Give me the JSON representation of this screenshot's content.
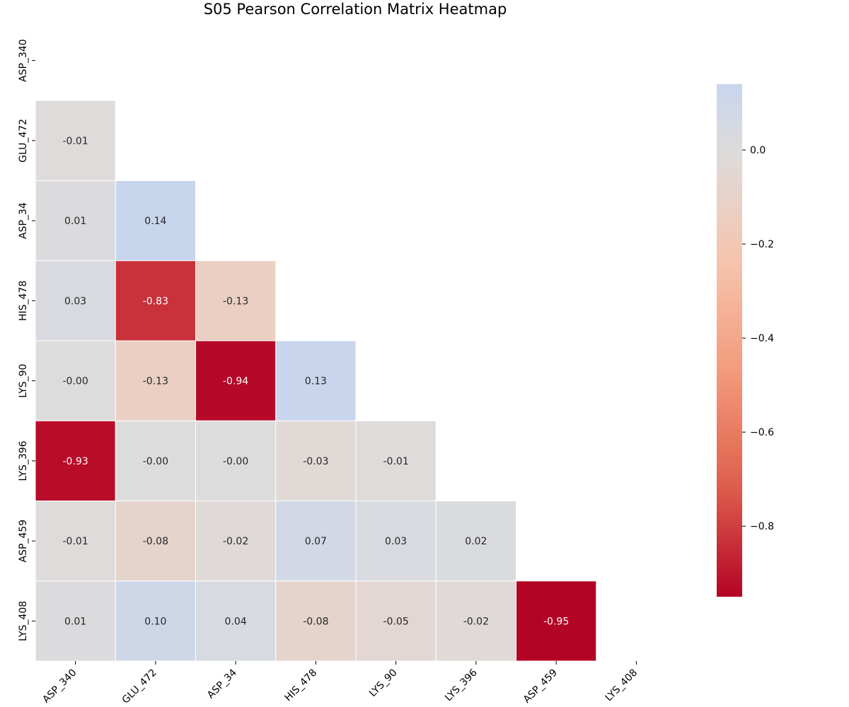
{
  "chart_data": {
    "type": "heatmap",
    "title": "S05 Pearson Correlation Matrix Heatmap",
    "variables": [
      "ASP_340",
      "GLU_472",
      "ASP_34",
      "HIS_478",
      "LYS_90",
      "LYS_396",
      "ASP_459",
      "LYS_408"
    ],
    "mask": "upper-triangle-including-diagonal",
    "lower_triangle": [
      {
        "row": "GLU_472",
        "values": [
          -0.01
        ]
      },
      {
        "row": "ASP_34",
        "values": [
          0.01,
          0.14
        ]
      },
      {
        "row": "HIS_478",
        "values": [
          0.03,
          -0.83,
          -0.13
        ]
      },
      {
        "row": "LYS_90",
        "values": [
          -0.0,
          -0.13,
          -0.94,
          0.13
        ]
      },
      {
        "row": "LYS_396",
        "values": [
          -0.93,
          -0.0,
          -0.0,
          -0.03,
          -0.01
        ]
      },
      {
        "row": "ASP_459",
        "values": [
          -0.01,
          -0.08,
          -0.02,
          0.07,
          0.03,
          0.02
        ]
      },
      {
        "row": "LYS_408",
        "values": [
          0.01,
          0.1,
          0.04,
          -0.08,
          -0.05,
          -0.02,
          -0.95
        ]
      }
    ],
    "value_format": "2 decimals",
    "colormap": "coolwarm",
    "colorbar": {
      "vmin": -0.95,
      "vmax": 0.14,
      "ticks": [
        0.0,
        -0.2,
        -0.4,
        -0.6,
        -0.8
      ],
      "tick_labels": [
        "0.0",
        "−0.2",
        "−0.4",
        "−0.6",
        "−0.8"
      ]
    },
    "colors": {
      "cold": "#3b4cc0",
      "neutral": "#dddcdc",
      "hot": "#b40426",
      "cell_border": "#ffffff"
    },
    "grid": false
  }
}
